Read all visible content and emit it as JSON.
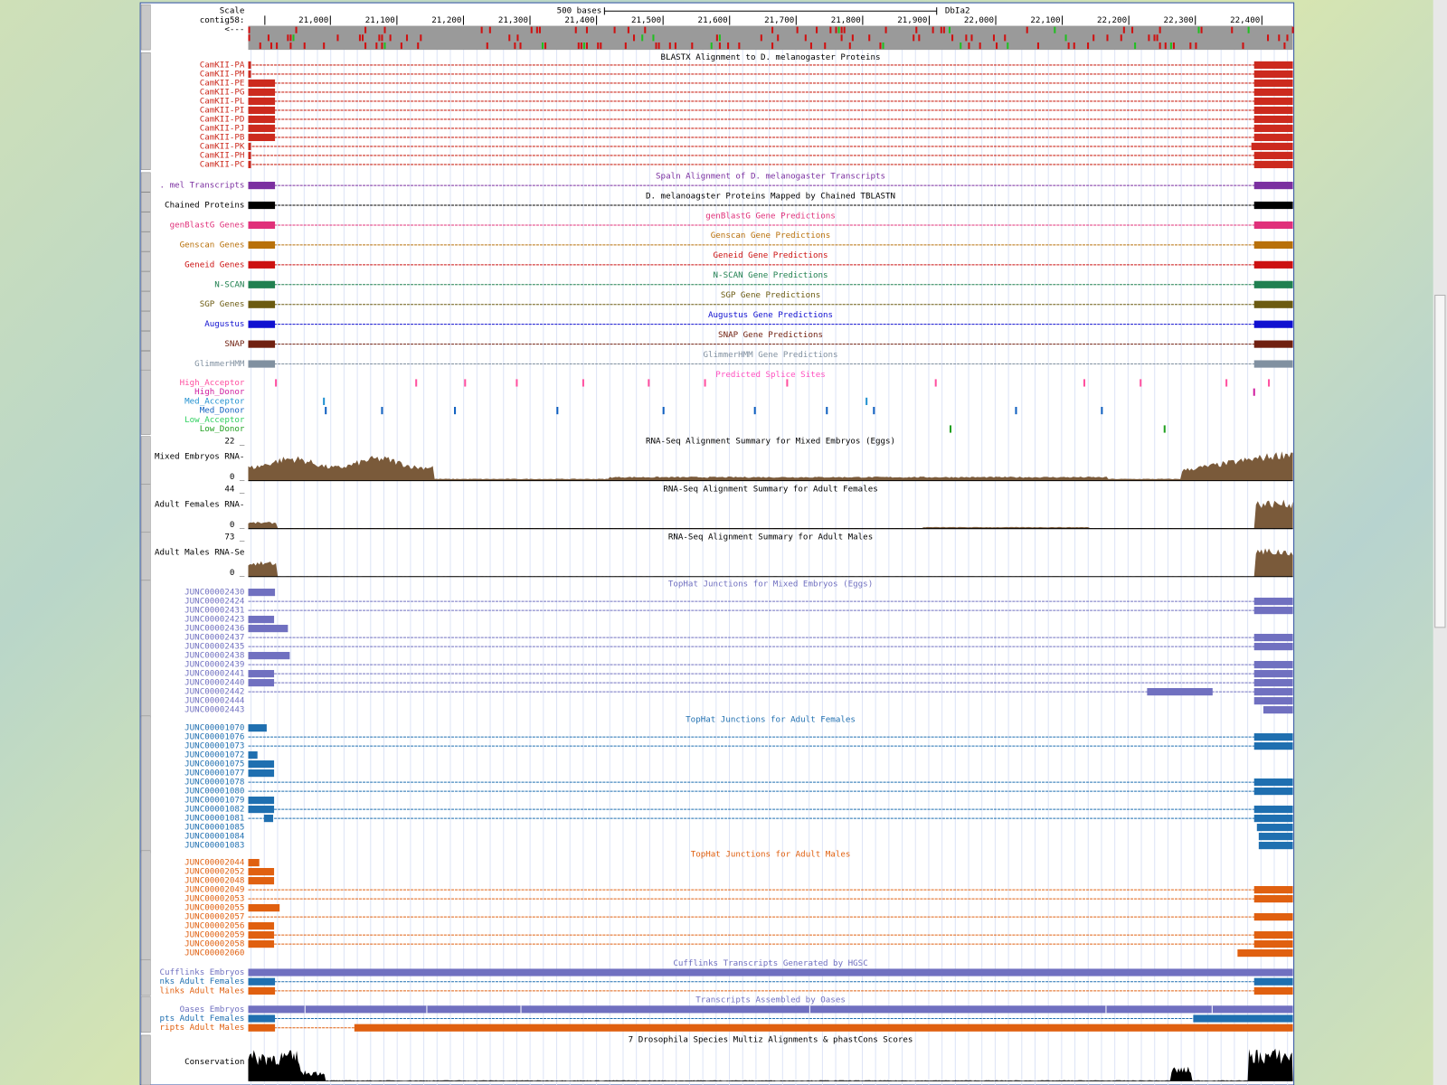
{
  "scale": {
    "label": "Scale",
    "contig": "contig58:",
    "strand": "<---",
    "bases": "500 bases",
    "assembly": "DbIa2",
    "ticks": [
      "21,000",
      "21,100",
      "21,200",
      "21,300",
      "21,400",
      "21,500",
      "21,600",
      "21,700",
      "21,800",
      "21,900",
      "22,000",
      "22,100",
      "22,200",
      "22,300",
      "22,400"
    ]
  },
  "blastx": {
    "title": "BLASTX Alignment to D. melanogaster Proteins",
    "rows": [
      "CamKII-PA",
      "CamKII-PM",
      "CamKII-PE",
      "CamKII-PG",
      "CamKII-PL",
      "CamKII-PI",
      "CamKII-PD",
      "CamKII-PJ",
      "CamKII-PB",
      "CamKII-PK",
      "CamKII-PH",
      "CamKII-PC"
    ]
  },
  "gene_tracks": [
    {
      "label": ". mel Transcripts",
      "title": "Spaln Alignment of D. melanogaster Transcripts"
    },
    {
      "label": "Chained Proteins",
      "title": "D. melanoagster Proteins Mapped by Chained TBLASTN"
    },
    {
      "label": "genBlastG Genes",
      "title": "genBlastG Gene Predictions"
    },
    {
      "label": "Genscan Genes",
      "title": "Genscan Gene Predictions"
    },
    {
      "label": "Geneid Genes",
      "title": "Geneid Gene Predictions"
    },
    {
      "label": "N-SCAN",
      "title": "N-SCAN Gene Predictions"
    },
    {
      "label": "SGP Genes",
      "title": "SGP Gene Predictions"
    },
    {
      "label": "Augustus",
      "title": "Augustus Gene Predictions"
    },
    {
      "label": "SNAP",
      "title": "SNAP Gene Predictions"
    },
    {
      "label": "GlimmerHMM",
      "title": "GlimmerHMM Gene Predictions"
    }
  ],
  "splice": {
    "title": "Predicted Splice Sites",
    "rows": [
      "High_Acceptor",
      "High_Donor",
      "Med_Acceptor",
      "Med_Donor",
      "Low_Acceptor",
      "Low_Donor"
    ]
  },
  "rnaseq": [
    {
      "label": "Mixed Embryos RNA-",
      "title": "RNA-Seq Alignment Summary for Mixed Embryos (Eggs)",
      "max": "22 _",
      "min": "0 _"
    },
    {
      "label": "Adult Females RNA-",
      "title": "RNA-Seq Alignment Summary for Adult Females",
      "max": "44 _",
      "min": "0 _"
    },
    {
      "label": "Adult Males RNA-Se",
      "title": "RNA-Seq Alignment Summary for Adult Males",
      "max": "73 _",
      "min": "0 _"
    }
  ],
  "junctions": [
    {
      "title": "TopHat Junctions for Mixed Embryos (Eggs)",
      "rows": [
        "JUNC00002430",
        "JUNC00002424",
        "JUNC00002431",
        "JUNC00002423",
        "JUNC00002436",
        "JUNC00002437",
        "JUNC00002435",
        "JUNC00002438",
        "JUNC00002439",
        "JUNC00002441",
        "JUNC00002440",
        "JUNC00002442",
        "JUNC00002444",
        "JUNC00002443"
      ]
    },
    {
      "title": "TopHat Junctions for Adult Females",
      "rows": [
        "JUNC00001070",
        "JUNC00001076",
        "JUNC00001073",
        "JUNC00001072",
        "JUNC00001075",
        "JUNC00001077",
        "JUNC00001078",
        "JUNC00001080",
        "JUNC00001079",
        "JUNC00001082",
        "JUNC00001081",
        "JUNC00001085",
        "JUNC00001084",
        "JUNC00001083"
      ]
    },
    {
      "title": "TopHat Junctions for Adult Males",
      "rows": [
        "JUNC00002044",
        "JUNC00002052",
        "JUNC00002048",
        "JUNC00002049",
        "JUNC00002053",
        "JUNC00002055",
        "JUNC00002057",
        "JUNC00002056",
        "JUNC00002059",
        "JUNC00002058",
        "JUNC00002060"
      ]
    }
  ],
  "cufflinks": {
    "title": "Cufflinks Transcripts Generated by HGSC",
    "rows": [
      "Cufflinks Embryos",
      "nks Adult Females",
      "links Adult Males"
    ]
  },
  "oases": {
    "title": "Transcripts Assembled by Oases",
    "rows": [
      "Oases Embryos",
      "pts Adult Females",
      "ripts Adult Males"
    ]
  },
  "conservation": {
    "title": "7 Drosophila Species Multiz Alignments & phastCons Scores",
    "label": "Conservation"
  }
}
